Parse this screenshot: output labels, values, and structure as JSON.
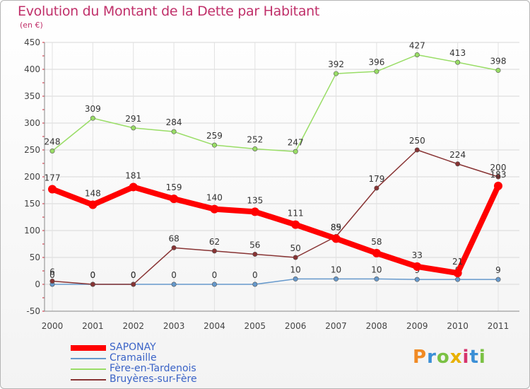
{
  "chart_data": {
    "type": "line",
    "title": "Evolution du Montant de la Dette par Habitant",
    "subtitle": "(en €)",
    "x": [
      "2000",
      "2001",
      "2002",
      "2003",
      "2004",
      "2005",
      "2006",
      "2007",
      "2008",
      "2009",
      "2010",
      "2011"
    ],
    "ylim": [
      -50,
      450
    ],
    "yticks": [
      -50,
      0,
      50,
      100,
      150,
      200,
      250,
      300,
      350,
      400,
      450
    ],
    "grid": true,
    "legend_position": "bottom-left",
    "series": [
      {
        "name": "SAPONAY",
        "color": "#ff0000",
        "emphasis": true,
        "values": [
          177,
          148,
          181,
          159,
          140,
          135,
          111,
          85,
          58,
          33,
          21,
          183
        ],
        "labels": [
          "177",
          "148",
          "181",
          "159",
          "140",
          "135",
          "111",
          "85",
          "58",
          "33",
          "21",
          "183"
        ]
      },
      {
        "name": "Cramaille",
        "color": "#6699cc",
        "values": [
          0,
          0,
          0,
          0,
          0,
          0,
          10,
          10,
          10,
          9,
          9,
          9
        ],
        "labels": [
          "0",
          "0",
          "0",
          "0",
          "0",
          "0",
          "10",
          "10",
          "10",
          "9",
          "9",
          "9"
        ]
      },
      {
        "name": "Fère-en-Tardenois",
        "color": "#99dd66",
        "values": [
          248,
          309,
          291,
          284,
          259,
          252,
          247,
          392,
          396,
          427,
          413,
          398
        ],
        "labels": [
          "248",
          "309",
          "291",
          "284",
          "259",
          "252",
          "247",
          "392",
          "396",
          "427",
          "413",
          "398"
        ]
      },
      {
        "name": "Bruyères-sur-Fère",
        "color": "#883333",
        "values": [
          6,
          0,
          0,
          68,
          62,
          56,
          50,
          89,
          179,
          250,
          224,
          200
        ],
        "labels": [
          "6",
          "0",
          "0",
          "68",
          "62",
          "56",
          "50",
          "89",
          "179",
          "250",
          "224",
          "200"
        ]
      }
    ]
  },
  "legend": {
    "items": [
      {
        "label": "SAPONAY",
        "color": "#ff0000"
      },
      {
        "label": "Cramaille",
        "color": "#6699cc"
      },
      {
        "label": "Fère-en-Tardenois",
        "color": "#99dd66"
      },
      {
        "label": "Bruyères-sur-Fère",
        "color": "#883333"
      }
    ]
  },
  "logo": {
    "text": "Proxiti",
    "letters": [
      {
        "ch": "P",
        "color": "#f08a24"
      },
      {
        "ch": "r",
        "color": "#3b8fd6"
      },
      {
        "ch": "o",
        "color": "#7ac143"
      },
      {
        "ch": "x",
        "color": "#e8b100"
      },
      {
        "ch": "i",
        "color": "#d6336c"
      },
      {
        "ch": "t",
        "color": "#3b8fd6"
      },
      {
        "ch": "i",
        "color": "#7ac143"
      }
    ]
  }
}
